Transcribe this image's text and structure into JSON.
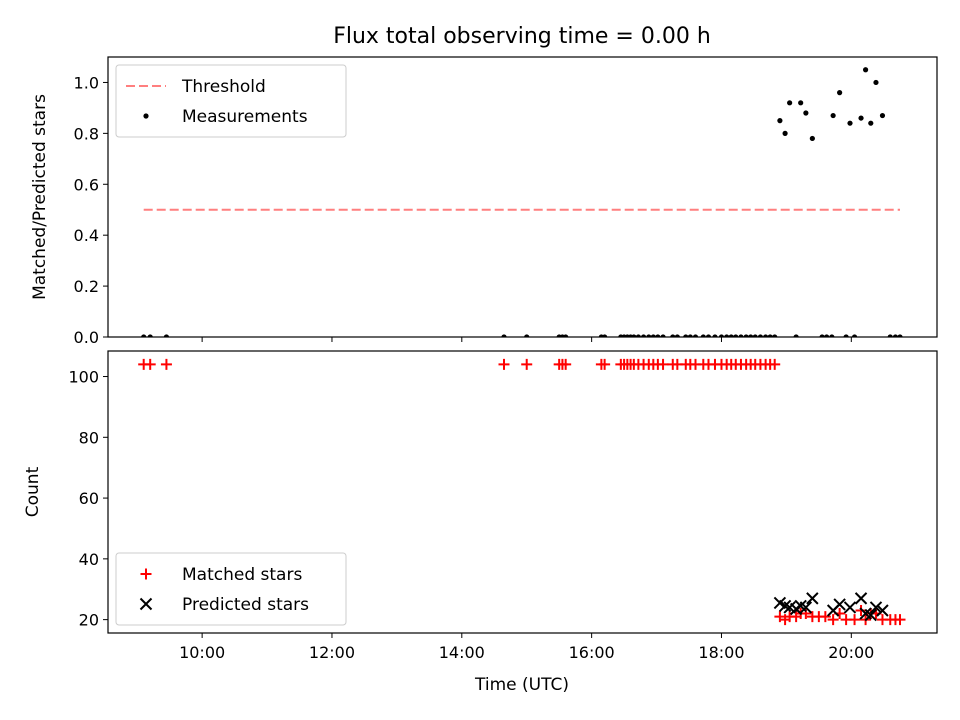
{
  "chart_data": {
    "title": "Flux total observing time = 0.00 h",
    "xlabel": "Time (UTC)",
    "x_unit": "hours UTC",
    "xlim": [
      8.55,
      21.32
    ],
    "xticks": [
      10,
      12,
      14,
      16,
      18,
      20
    ],
    "xtick_labels": [
      "10:00",
      "12:00",
      "14:00",
      "16:00",
      "18:00",
      "20:00"
    ],
    "panels": [
      {
        "type": "scatter",
        "ylabel": "Matched/Predicted stars",
        "ylim": [
          0,
          1.1
        ],
        "yticks": [
          0,
          0.2,
          0.4,
          0.6,
          0.8,
          1.0
        ],
        "ytick_labels": [
          "0.0",
          "0.2",
          "0.4",
          "0.6",
          "0.8",
          "1.0"
        ],
        "legend_position": "upper left",
        "lines": [
          {
            "name": "Threshold",
            "color": "#ff7f7f",
            "dash": "dashed",
            "x": [
              9.1,
              20.75
            ],
            "y": [
              0.5,
              0.5
            ]
          }
        ],
        "series": [
          {
            "name": "Measurements",
            "marker": "dot",
            "color": "#000000",
            "points": [
              [
                9.1,
                0
              ],
              [
                9.2,
                0
              ],
              [
                9.45,
                0
              ],
              [
                14.65,
                0
              ],
              [
                15.0,
                0
              ],
              [
                15.5,
                0
              ],
              [
                15.55,
                0
              ],
              [
                15.6,
                0
              ],
              [
                16.15,
                0
              ],
              [
                16.2,
                0
              ],
              [
                16.45,
                0
              ],
              [
                16.5,
                0
              ],
              [
                16.55,
                0
              ],
              [
                16.6,
                0
              ],
              [
                16.65,
                0
              ],
              [
                16.72,
                0
              ],
              [
                16.8,
                0
              ],
              [
                16.88,
                0
              ],
              [
                16.95,
                0
              ],
              [
                17.02,
                0
              ],
              [
                17.1,
                0
              ],
              [
                17.25,
                0
              ],
              [
                17.32,
                0
              ],
              [
                17.45,
                0
              ],
              [
                17.52,
                0
              ],
              [
                17.6,
                0
              ],
              [
                17.72,
                0
              ],
              [
                17.8,
                0
              ],
              [
                17.9,
                0
              ],
              [
                18.0,
                0
              ],
              [
                18.08,
                0
              ],
              [
                18.15,
                0
              ],
              [
                18.22,
                0
              ],
              [
                18.3,
                0
              ],
              [
                18.38,
                0
              ],
              [
                18.45,
                0
              ],
              [
                18.52,
                0
              ],
              [
                18.6,
                0
              ],
              [
                18.68,
                0
              ],
              [
                18.75,
                0
              ],
              [
                18.82,
                0
              ],
              [
                19.15,
                0
              ],
              [
                19.55,
                0
              ],
              [
                19.62,
                0
              ],
              [
                19.7,
                0
              ],
              [
                19.92,
                0
              ],
              [
                20.05,
                0
              ],
              [
                20.6,
                0
              ],
              [
                20.68,
                0
              ],
              [
                20.75,
                0
              ],
              [
                18.9,
                0.85
              ],
              [
                18.98,
                0.8
              ],
              [
                19.05,
                0.92
              ],
              [
                19.22,
                0.92
              ],
              [
                19.3,
                0.88
              ],
              [
                19.4,
                0.78
              ],
              [
                19.72,
                0.87
              ],
              [
                19.82,
                0.96
              ],
              [
                19.98,
                0.84
              ],
              [
                20.15,
                0.86
              ],
              [
                20.22,
                1.05
              ],
              [
                20.3,
                0.84
              ],
              [
                20.38,
                1.0
              ],
              [
                20.48,
                0.87
              ]
            ]
          }
        ]
      },
      {
        "type": "scatter",
        "ylabel": "Count",
        "ylim": [
          15.6,
          108.4
        ],
        "yticks": [
          20,
          40,
          60,
          80,
          100
        ],
        "ytick_labels": [
          "20",
          "40",
          "60",
          "80",
          "100"
        ],
        "legend_position": "lower left",
        "series": [
          {
            "name": "Matched stars",
            "marker": "plus",
            "color": "#ff0000",
            "points": [
              [
                9.1,
                104
              ],
              [
                9.2,
                104
              ],
              [
                9.45,
                104
              ],
              [
                14.65,
                104
              ],
              [
                15.0,
                104
              ],
              [
                15.5,
                104
              ],
              [
                15.55,
                104
              ],
              [
                15.6,
                104
              ],
              [
                16.15,
                104
              ],
              [
                16.2,
                104
              ],
              [
                16.45,
                104
              ],
              [
                16.5,
                104
              ],
              [
                16.55,
                104
              ],
              [
                16.6,
                104
              ],
              [
                16.65,
                104
              ],
              [
                16.72,
                104
              ],
              [
                16.8,
                104
              ],
              [
                16.88,
                104
              ],
              [
                16.95,
                104
              ],
              [
                17.02,
                104
              ],
              [
                17.1,
                104
              ],
              [
                17.25,
                104
              ],
              [
                17.32,
                104
              ],
              [
                17.45,
                104
              ],
              [
                17.52,
                104
              ],
              [
                17.6,
                104
              ],
              [
                17.72,
                104
              ],
              [
                17.8,
                104
              ],
              [
                17.9,
                104
              ],
              [
                18.0,
                104
              ],
              [
                18.08,
                104
              ],
              [
                18.15,
                104
              ],
              [
                18.22,
                104
              ],
              [
                18.3,
                104
              ],
              [
                18.38,
                104
              ],
              [
                18.45,
                104
              ],
              [
                18.52,
                104
              ],
              [
                18.6,
                104
              ],
              [
                18.68,
                104
              ],
              [
                18.75,
                104
              ],
              [
                18.82,
                104
              ],
              [
                18.9,
                21
              ],
              [
                18.98,
                20
              ],
              [
                19.05,
                21
              ],
              [
                19.15,
                21
              ],
              [
                19.22,
                22
              ],
              [
                19.3,
                22
              ],
              [
                19.4,
                21
              ],
              [
                19.5,
                21
              ],
              [
                19.6,
                21
              ],
              [
                19.72,
                20
              ],
              [
                19.82,
                22
              ],
              [
                19.92,
                20
              ],
              [
                20.05,
                20
              ],
              [
                20.15,
                23
              ],
              [
                20.22,
                20
              ],
              [
                20.3,
                22
              ],
              [
                20.38,
                22
              ],
              [
                20.48,
                20
              ],
              [
                20.6,
                20
              ],
              [
                20.68,
                20
              ],
              [
                20.75,
                20
              ]
            ]
          },
          {
            "name": "Predicted stars",
            "marker": "x",
            "color": "#000000",
            "points": [
              [
                18.9,
                25.5
              ],
              [
                18.98,
                24.5
              ],
              [
                19.05,
                24
              ],
              [
                19.15,
                23.5
              ],
              [
                19.22,
                24.5
              ],
              [
                19.3,
                24
              ],
              [
                19.4,
                27
              ],
              [
                19.72,
                23
              ],
              [
                19.82,
                25
              ],
              [
                19.98,
                24
              ],
              [
                20.15,
                27
              ],
              [
                20.22,
                22
              ],
              [
                20.3,
                21.5
              ],
              [
                20.38,
                24
              ],
              [
                20.48,
                23
              ]
            ]
          }
        ]
      }
    ]
  }
}
